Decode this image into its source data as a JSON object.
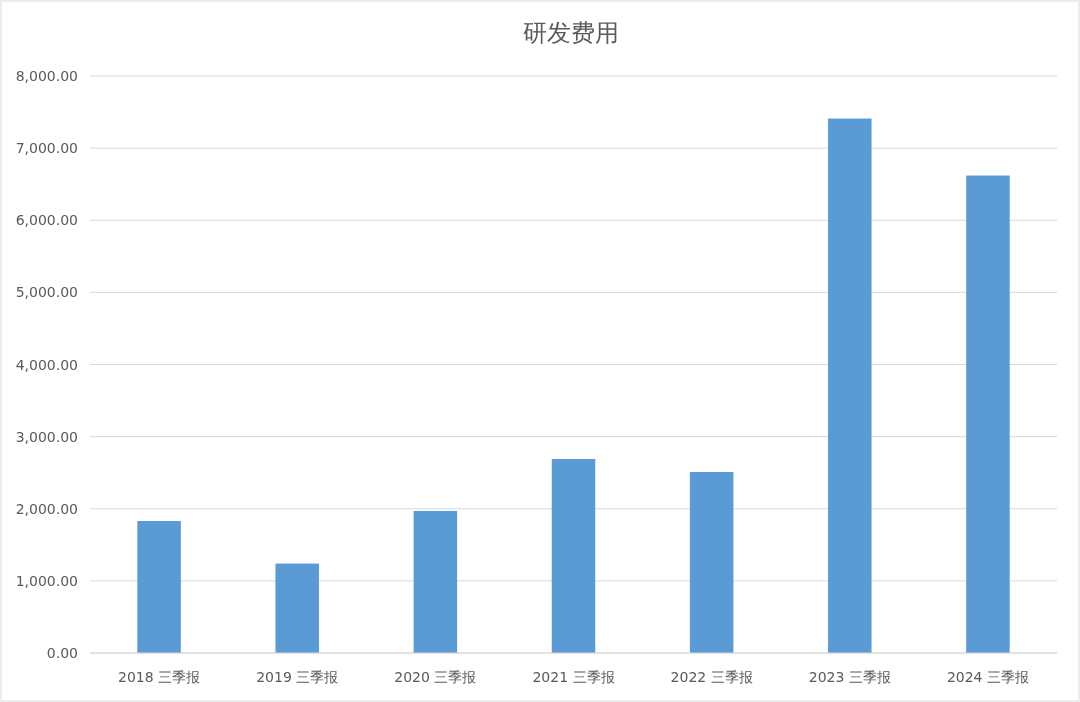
{
  "chart_data": {
    "type": "bar",
    "title": "研发费用",
    "categories": [
      "2018 三季报",
      "2019 三季报",
      "2020 三季报",
      "2021 三季报",
      "2022 三季报",
      "2023 三季报",
      "2024 三季报"
    ],
    "values": [
      1830,
      1240,
      1970,
      2690,
      2510,
      7410,
      6620
    ],
    "color": "#5b9bd5",
    "ylim": [
      0,
      8000
    ],
    "yticks": [
      {
        "value": 0,
        "label": "0.00"
      },
      {
        "value": 1000,
        "label": "1,000.00"
      },
      {
        "value": 2000,
        "label": "2,000.00"
      },
      {
        "value": 3000,
        "label": "3,000.00"
      },
      {
        "value": 4000,
        "label": "4,000.00"
      },
      {
        "value": 5000,
        "label": "5,000.00"
      },
      {
        "value": 6000,
        "label": "6,000.00"
      },
      {
        "value": 7000,
        "label": "7,000.00"
      },
      {
        "value": 8000,
        "label": "8,000.00"
      }
    ],
    "grid": "y"
  }
}
